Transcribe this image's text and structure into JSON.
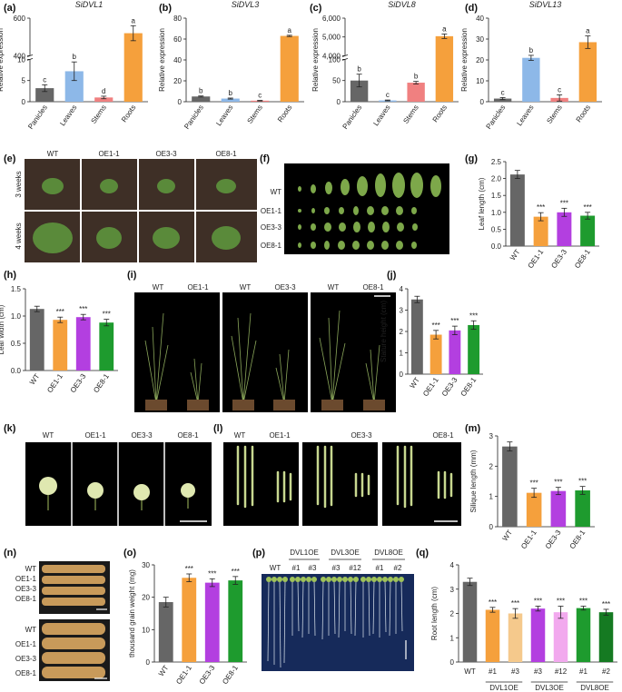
{
  "panel_labels": [
    "(a)",
    "(b)",
    "(c)",
    "(d)",
    "(e)",
    "(f)",
    "(g)",
    "(h)",
    "(i)",
    "(j)",
    "(k)",
    "(l)",
    "(m)",
    "(n)",
    "(o)",
    "(p)",
    "(q)"
  ],
  "colors": {
    "grey": "#666666",
    "blue": "#8DB8E8",
    "red": "#F08080",
    "orange": "#F5A03C",
    "orange_light": "#F5C98C",
    "purple": "#B33FE0",
    "pink": "#F2A9EE",
    "green": "#1E9B2E",
    "dark_green": "#157A22"
  },
  "photos": {
    "e": {
      "cols": [
        "WT",
        "OE1-1",
        "OE3-3",
        "OE8-1"
      ],
      "rows": [
        "3 weeks",
        "4 weeks"
      ]
    },
    "f": {
      "rows": [
        "WT",
        "OE1-1",
        "OE3-3",
        "OE8-1"
      ]
    },
    "i": {
      "labels": [
        "WT",
        "OE1-1",
        "WT",
        "OE3-3",
        "WT",
        "OE8-1"
      ]
    },
    "k": {
      "labels": [
        "WT",
        "OE1-1",
        "OE3-3",
        "OE8-1"
      ]
    },
    "l": {
      "labels": [
        "WT",
        "OE1-1",
        "OE3-3",
        "OE8-1"
      ]
    },
    "n": {
      "rows": [
        "WT",
        "OE1-1",
        "OE3-3",
        "OE8-1"
      ]
    },
    "p": {
      "top": [
        "DVL1OE",
        "DVL3OE",
        "DVL8OE"
      ],
      "sub": [
        "WT",
        "#1",
        "#3",
        "#3",
        "#12",
        "#1",
        "#2"
      ]
    }
  },
  "chart_data": [
    {
      "id": "a",
      "type": "bar",
      "title": "SiDVL1",
      "ylabel": "Relative expression",
      "categories": [
        "Panicles",
        "Leaves",
        "Stems",
        "Roots"
      ],
      "values": [
        3.2,
        7.2,
        1.0,
        540
      ],
      "errors": [
        0.8,
        2.2,
        0.3,
        80
      ],
      "letters": [
        "c",
        "b",
        "d",
        "a"
      ],
      "broken_axis": true,
      "lower_ticks": [
        "0",
        "5",
        "10"
      ],
      "upper_ticks": [
        "400",
        "600"
      ],
      "lower_range": [
        0,
        10
      ],
      "upper_range": [
        300,
        700
      ]
    },
    {
      "id": "b",
      "type": "bar",
      "title": "SiDVL3",
      "ylabel": "Relative expression",
      "categories": [
        "Panicles",
        "Leaves",
        "Stems",
        "Roots"
      ],
      "values": [
        5,
        3,
        1,
        63
      ],
      "errors": [
        0.5,
        0.5,
        0.3,
        0.6
      ],
      "letters": [
        "b",
        "b",
        "c",
        "a"
      ],
      "ylim": [
        0,
        80
      ],
      "ticks": [
        "0",
        "20",
        "40",
        "60",
        "80"
      ]
    },
    {
      "id": "c",
      "type": "bar",
      "title": "SiDVL8",
      "ylabel": "Relative expression",
      "categories": [
        "Panicles",
        "Leaves",
        "Stems",
        "Roots"
      ],
      "values": [
        50,
        3,
        45,
        4800
      ],
      "errors": [
        15,
        1,
        3,
        150
      ],
      "letters": [
        "b",
        "c",
        "b",
        "a"
      ],
      "broken_axis": true,
      "lower_ticks": [
        "0",
        "50",
        "100"
      ],
      "upper_ticks": [
        "4,000",
        "5,000",
        "6,000"
      ],
      "lower_range": [
        0,
        100
      ],
      "upper_range": [
        3500,
        6000
      ]
    },
    {
      "id": "d",
      "type": "bar",
      "title": "SiDVL13",
      "ylabel": "Relative expression",
      "categories": [
        "Panicles",
        "Leaves",
        "Stems",
        "Roots"
      ],
      "values": [
        1.5,
        21,
        1.8,
        28.5
      ],
      "errors": [
        0.5,
        1.2,
        1.5,
        3
      ],
      "letters": [
        "c",
        "b",
        "c",
        "a"
      ],
      "ylim": [
        0,
        40
      ],
      "ticks": [
        "0",
        "10",
        "20",
        "30",
        "40"
      ]
    },
    {
      "id": "g",
      "type": "bar",
      "ylabel": "Leaf length (cm)",
      "categories": [
        "WT",
        "OE1-1",
        "OE3-3",
        "OE8-1"
      ],
      "values": [
        2.12,
        0.87,
        1.0,
        0.9
      ],
      "errors": [
        0.12,
        0.12,
        0.12,
        0.1
      ],
      "sig": [
        "",
        "***",
        "***",
        "***"
      ],
      "ylim": [
        0,
        2.5
      ],
      "ticks": [
        "0.0",
        "0.5",
        "1.0",
        "1.5",
        "2.0",
        "2.5"
      ]
    },
    {
      "id": "h",
      "type": "bar",
      "ylabel": "Leaf width (cm)",
      "categories": [
        "WT",
        "OE1-1",
        "OE3-3",
        "OE8-1"
      ],
      "values": [
        1.13,
        0.93,
        0.98,
        0.88
      ],
      "errors": [
        0.05,
        0.05,
        0.05,
        0.06
      ],
      "sig": [
        "",
        "***",
        "***",
        "***"
      ],
      "ylim": [
        0,
        1.5
      ],
      "ticks": [
        "0.0",
        "0.5",
        "1.0",
        "1.5"
      ]
    },
    {
      "id": "j",
      "type": "bar",
      "ylabel": "Stature height (cm)",
      "categories": [
        "WT",
        "OE1-1",
        "OE3-3",
        "OE8-1"
      ],
      "values": [
        3.5,
        1.85,
        2.05,
        2.3
      ],
      "errors": [
        0.15,
        0.2,
        0.2,
        0.2
      ],
      "sig": [
        "",
        "***",
        "***",
        "***"
      ],
      "ylim": [
        0,
        4
      ],
      "ticks": [
        "0",
        "1",
        "2",
        "3",
        "4"
      ]
    },
    {
      "id": "m",
      "type": "bar",
      "ylabel": "Silique length (mm)",
      "categories": [
        "WT",
        "OE1-1",
        "OE3-3",
        "OE8-1"
      ],
      "values": [
        2.65,
        1.12,
        1.18,
        1.2
      ],
      "errors": [
        0.15,
        0.15,
        0.12,
        0.13
      ],
      "sig": [
        "",
        "***",
        "***",
        "***"
      ],
      "ylim": [
        0,
        3
      ],
      "ticks": [
        "0",
        "1",
        "2",
        "3"
      ]
    },
    {
      "id": "o",
      "type": "bar",
      "ylabel": "thousand grain weight (mg)",
      "categories": [
        "WT",
        "OE1-1",
        "OE3-3",
        "OE8-1"
      ],
      "values": [
        18.5,
        26,
        24.5,
        25.2
      ],
      "errors": [
        1.5,
        1.2,
        1.2,
        1.2
      ],
      "sig": [
        "",
        "***",
        "***",
        "***"
      ],
      "ylim": [
        0,
        30
      ],
      "ticks": [
        "0",
        "10",
        "20",
        "30"
      ]
    },
    {
      "id": "q",
      "type": "bar",
      "ylabel": "Root length (cm)",
      "categories": [
        "WT",
        "#1",
        "#3",
        "#3",
        "#12",
        "#1",
        "#2"
      ],
      "group_labels": [
        "DVL1OE",
        "DVL3OE",
        "DVL8OE"
      ],
      "values": [
        3.3,
        2.15,
        2.0,
        2.2,
        2.05,
        2.22,
        2.05
      ],
      "errors": [
        0.15,
        0.1,
        0.2,
        0.1,
        0.25,
        0.08,
        0.12
      ],
      "sig": [
        "",
        "***",
        "***",
        "***",
        "***",
        "***",
        "***"
      ],
      "ylim": [
        0,
        4
      ],
      "ticks": [
        "0",
        "1",
        "2",
        "3",
        "4"
      ]
    }
  ]
}
